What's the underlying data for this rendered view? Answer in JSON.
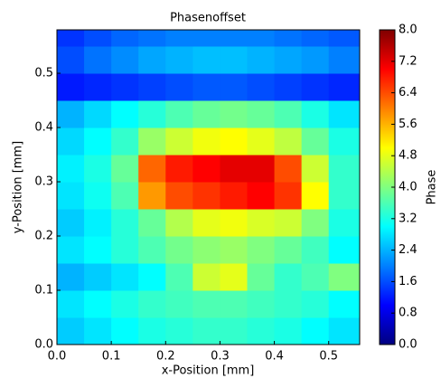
{
  "chart_data": {
    "type": "heatmap",
    "title": "Phasenoffset",
    "x_label": "x-Position [mm]",
    "y_label": "y-Position [mm]",
    "colorbar_label": "Phase",
    "colormap": "jet",
    "x": [
      0.025,
      0.075,
      0.125,
      0.175,
      0.225,
      0.275,
      0.325,
      0.375,
      0.425,
      0.475,
      0.525,
      0.575
    ],
    "y": [
      0.025,
      0.075,
      0.125,
      0.175,
      0.225,
      0.275,
      0.325,
      0.375,
      0.425,
      0.475,
      0.525,
      0.575
    ],
    "z": [
      [
        2.6,
        2.8,
        3.0,
        3.2,
        3.3,
        3.4,
        3.4,
        3.3,
        3.2,
        3.0,
        2.8,
        2.8
      ],
      [
        2.8,
        3.0,
        3.2,
        3.4,
        3.5,
        3.6,
        3.6,
        3.5,
        3.4,
        3.3,
        3.0,
        3.0
      ],
      [
        2.4,
        2.6,
        2.8,
        3.0,
        3.6,
        4.6,
        4.8,
        3.8,
        3.4,
        3.6,
        4.0,
        4.0
      ],
      [
        2.8,
        3.0,
        3.3,
        3.6,
        3.9,
        4.1,
        4.2,
        4.0,
        3.8,
        3.5,
        3.0,
        3.0
      ],
      [
        2.6,
        2.9,
        3.3,
        3.8,
        4.4,
        4.8,
        4.9,
        4.7,
        4.6,
        4.0,
        3.2,
        3.2
      ],
      [
        2.8,
        3.1,
        3.6,
        5.8,
        6.4,
        6.6,
        6.8,
        7.0,
        6.6,
        5.0,
        3.4,
        3.4
      ],
      [
        2.9,
        3.2,
        3.8,
        6.2,
        6.8,
        7.0,
        7.2,
        7.2,
        6.4,
        4.6,
        3.4,
        3.4
      ],
      [
        2.7,
        3.0,
        3.4,
        4.2,
        4.6,
        4.9,
        5.0,
        4.8,
        4.5,
        3.8,
        3.2,
        3.2
      ],
      [
        2.4,
        2.7,
        3.0,
        3.3,
        3.6,
        3.8,
        3.9,
        3.8,
        3.6,
        3.2,
        2.8,
        2.8
      ],
      [
        1.2,
        1.3,
        1.4,
        1.5,
        1.6,
        1.7,
        1.7,
        1.6,
        1.5,
        1.4,
        1.3,
        1.3
      ],
      [
        1.6,
        1.9,
        2.1,
        2.3,
        2.4,
        2.5,
        2.5,
        2.4,
        2.3,
        2.2,
        2.0,
        2.0
      ],
      [
        1.4,
        1.6,
        1.8,
        1.9,
        2.0,
        2.0,
        2.0,
        2.0,
        1.9,
        1.8,
        1.7,
        1.7
      ]
    ],
    "xlim": [
      0,
      0.557
    ],
    "ylim": [
      0,
      0.58
    ],
    "zlim": [
      0,
      8
    ],
    "xticks": [
      {
        "value": 0,
        "label": "0.0"
      },
      0.1,
      0.2,
      0.3,
      0.4,
      0.5
    ],
    "yticks": [
      {
        "value": 0,
        "label": "0.0"
      },
      0.1,
      0.2,
      0.3,
      0.4,
      0.5
    ],
    "zticks": [
      {
        "value": 0,
        "label": "0.0"
      },
      0.8,
      1.6,
      2.4,
      3.2,
      {
        "value": 4,
        "label": "4.0"
      },
      4.8,
      5.6,
      6.4,
      7.2,
      {
        "value": 8,
        "label": "8.0"
      }
    ]
  }
}
